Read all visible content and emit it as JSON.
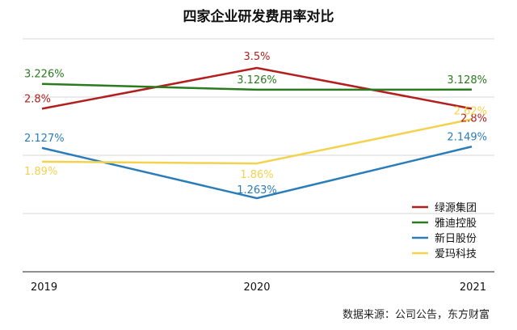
{
  "chart_data": {
    "type": "line",
    "title": "四家企业研发费用率对比",
    "xlabel": "",
    "ylabel": "",
    "categories": [
      "2019",
      "2020",
      "2021"
    ],
    "ylim": [
      0,
      4
    ],
    "grid": true,
    "legend_position": "bottom-right",
    "series": [
      {
        "name": "绿源集团",
        "color": "#b21f1f",
        "values": [
          2.8,
          3.5,
          2.8
        ],
        "labels": [
          "2.8%",
          "3.5%",
          "2.8%"
        ]
      },
      {
        "name": "雅迪控股",
        "color": "#2a7a1e",
        "values": [
          3.226,
          3.126,
          3.128
        ],
        "labels": [
          "3.226%",
          "3.126%",
          "3.128%"
        ]
      },
      {
        "name": "新日股份",
        "color": "#2a7db8",
        "values": [
          2.127,
          1.263,
          2.149
        ],
        "labels": [
          "2.127%",
          "1.263%",
          "2.149%"
        ]
      },
      {
        "name": "爱玛科技",
        "color": "#f3d24e",
        "values": [
          1.89,
          1.86,
          2.62
        ],
        "labels": [
          "1.89%",
          "1.86%",
          "2.62%"
        ]
      }
    ]
  },
  "source_note": "数据来源：公司公告，东方财富"
}
